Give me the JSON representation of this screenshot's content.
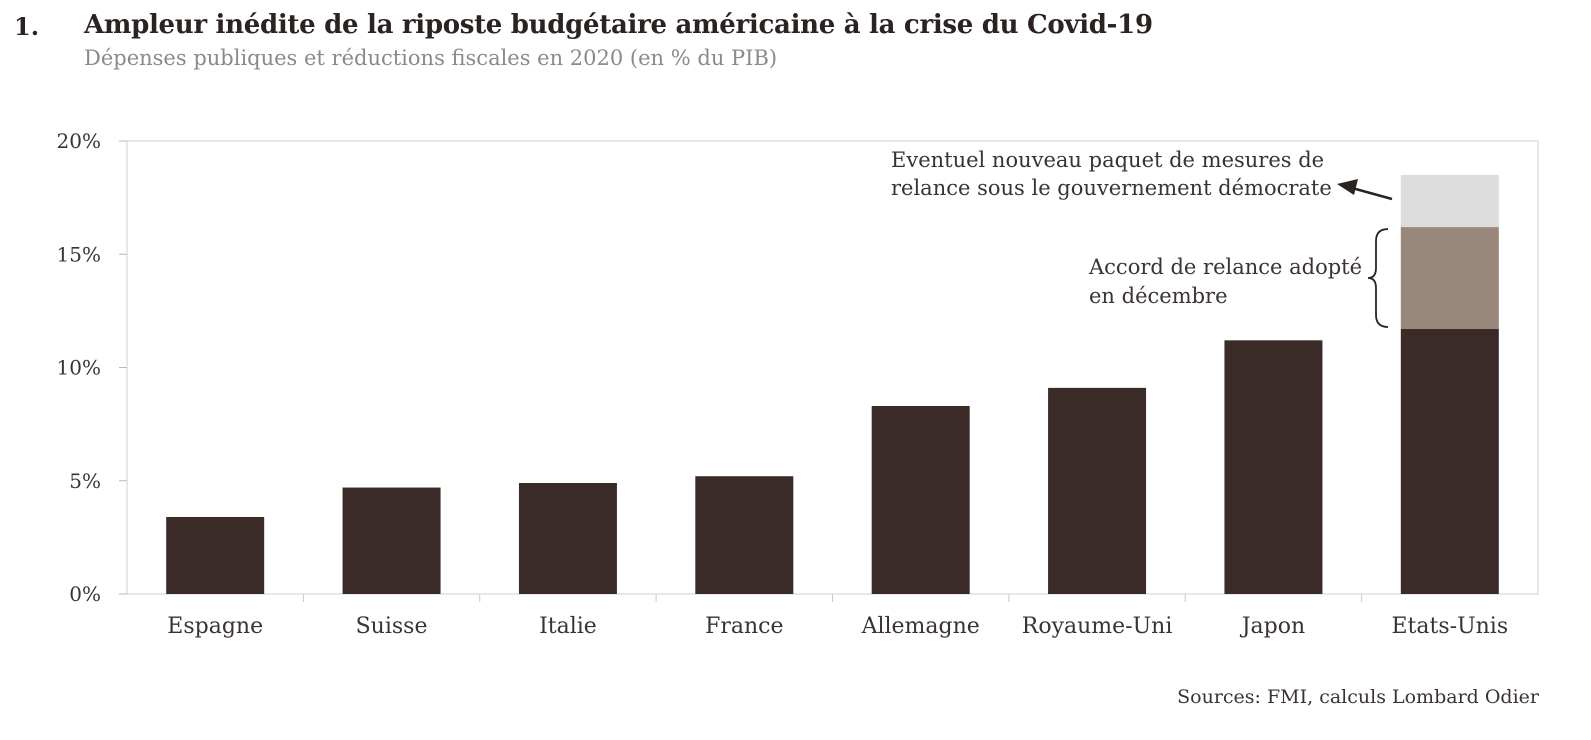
{
  "header": {
    "number": "1.",
    "title": "Ampleur inédite de la riposte budgétaire américaine à la crise du Covid-19",
    "subtitle": "Dépenses publiques et réductions fiscales en 2020 (en % du PIB)"
  },
  "source": "Sources: FMI, calculs Lombard Odier",
  "chart_data": {
    "type": "bar",
    "stacked": true,
    "categories": [
      "Espagne",
      "Suisse",
      "Italie",
      "France",
      "Allemagne",
      "Royaume-Uni",
      "Japon",
      "Etats-Unis"
    ],
    "series": [
      {
        "color": "#3a2b28",
        "values": [
          3.4,
          4.7,
          4.9,
          5.2,
          8.3,
          9.1,
          11.2,
          11.7
        ]
      },
      {
        "color": "#9a877c",
        "values": [
          0,
          0,
          0,
          0,
          0,
          0,
          0,
          4.5
        ]
      },
      {
        "color": "#dcdcdc",
        "values": [
          0,
          0,
          0,
          0,
          0,
          0,
          0,
          2.3
        ]
      }
    ],
    "yticks": [
      "0%",
      "5%",
      "10%",
      "15%",
      "20%"
    ],
    "ytick_values": [
      0,
      5,
      10,
      15,
      20
    ],
    "ylim": [
      0,
      20
    ],
    "annotations": {
      "new_package": [
        "Eventuel nouveau paquet de mesures de",
        "relance sous le gouvernement démocrate"
      ],
      "december_deal": [
        "Accord de relance adopté",
        "en décembre"
      ]
    },
    "colors": {
      "axis": "#d0d0d0",
      "bar": "#3a2b28",
      "text": "#3a3330"
    }
  }
}
